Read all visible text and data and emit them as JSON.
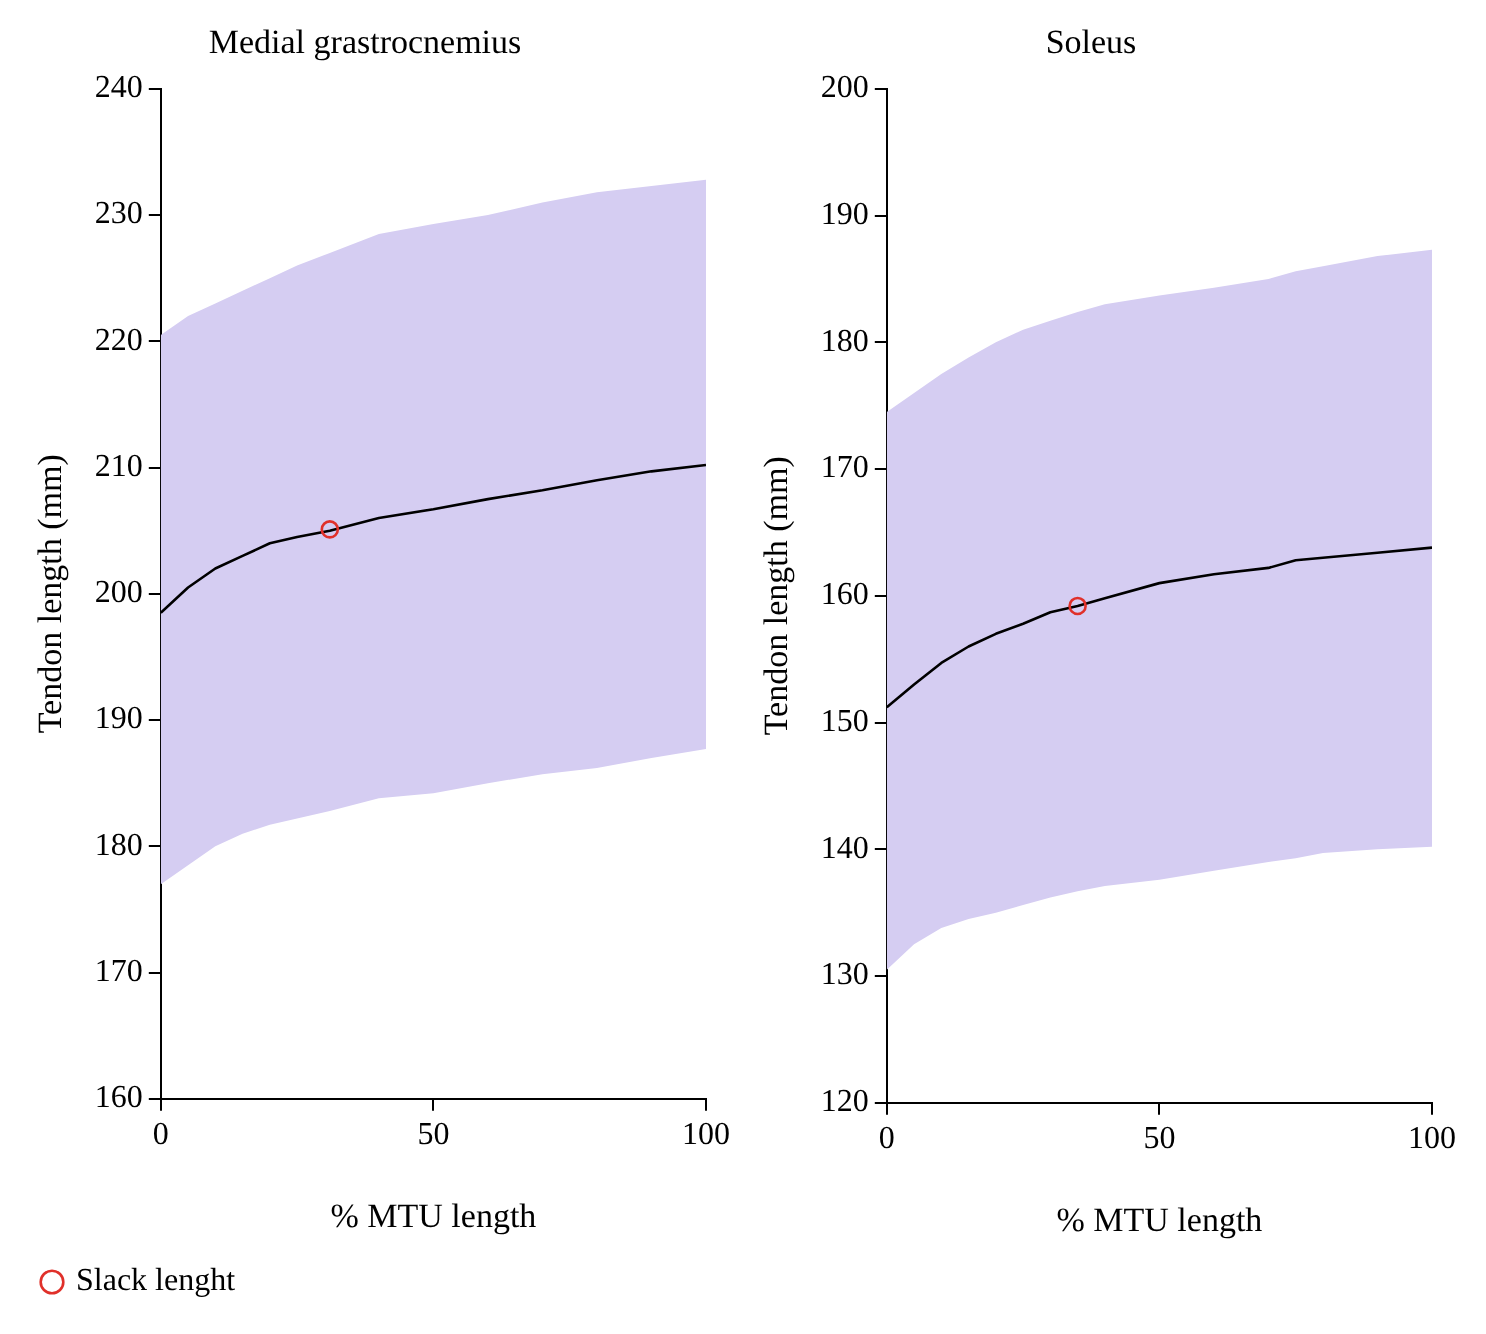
{
  "chart_data": [
    {
      "type": "line",
      "title": "Medial grastrocnemius",
      "xlabel": "% MTU length",
      "ylabel": "Tendon length (mm)",
      "xlim": [
        0,
        100
      ],
      "xticks": [
        0,
        50,
        100
      ],
      "ylim": [
        160,
        240
      ],
      "yticks": [
        160,
        170,
        180,
        190,
        200,
        210,
        220,
        230,
        240
      ],
      "grid": false,
      "legend": "bottom left",
      "series": [
        {
          "color": "#000000",
          "marker": "none",
          "x": [
            0,
            5,
            10,
            15,
            20,
            25,
            31,
            40,
            50,
            60,
            70,
            80,
            90,
            100
          ],
          "values": [
            198.5,
            200.5,
            202,
            203,
            204,
            204.5,
            205,
            206,
            206.7,
            207.5,
            208.2,
            209,
            209.7,
            210.2
          ],
          "lower": [
            177,
            178.5,
            180,
            181,
            181.7,
            182.2,
            182.8,
            183.8,
            184.2,
            185,
            185.7,
            186.2,
            187,
            187.7
          ],
          "upper": [
            220.5,
            222,
            223,
            224,
            225,
            226,
            227,
            228.5,
            229.3,
            230,
            231,
            231.8,
            232.3,
            232.8
          ]
        },
        {
          "type": "scatter",
          "name": "Slack lenght",
          "color": "#e0302a",
          "marker": "circle",
          "x": [
            31
          ],
          "values": [
            205.1
          ]
        }
      ]
    },
    {
      "type": "line",
      "title": "Soleus",
      "xlabel": "% MTU length",
      "ylabel": "Tendon length (mm)",
      "xlim": [
        0,
        100
      ],
      "xticks": [
        0,
        50,
        100
      ],
      "ylim": [
        120,
        200
      ],
      "yticks": [
        120,
        130,
        140,
        150,
        160,
        170,
        180,
        190,
        200
      ],
      "grid": false,
      "series": [
        {
          "color": "#000000",
          "marker": "none",
          "x": [
            0,
            5,
            10,
            15,
            20,
            25,
            30,
            35,
            40,
            50,
            60,
            70,
            75,
            80,
            90,
            100
          ],
          "values": [
            151.2,
            153,
            154.7,
            156,
            157,
            157.8,
            158.7,
            159.2,
            159.8,
            161,
            161.7,
            162.2,
            162.8,
            163,
            163.4,
            163.8
          ],
          "lower": [
            130.5,
            132.5,
            133.8,
            134.5,
            135,
            135.6,
            136.2,
            136.7,
            137.1,
            137.6,
            138.3,
            139,
            139.3,
            139.7,
            140,
            140.2
          ],
          "upper": [
            174.5,
            176,
            177.5,
            178.8,
            180,
            181,
            181.7,
            182.4,
            183,
            183.7,
            184.3,
            185,
            185.6,
            186,
            186.8,
            187.3
          ]
        },
        {
          "type": "scatter",
          "color": "#e0302a",
          "marker": "circle",
          "x": [
            35
          ],
          "values": [
            159.2
          ]
        }
      ]
    }
  ]
}
